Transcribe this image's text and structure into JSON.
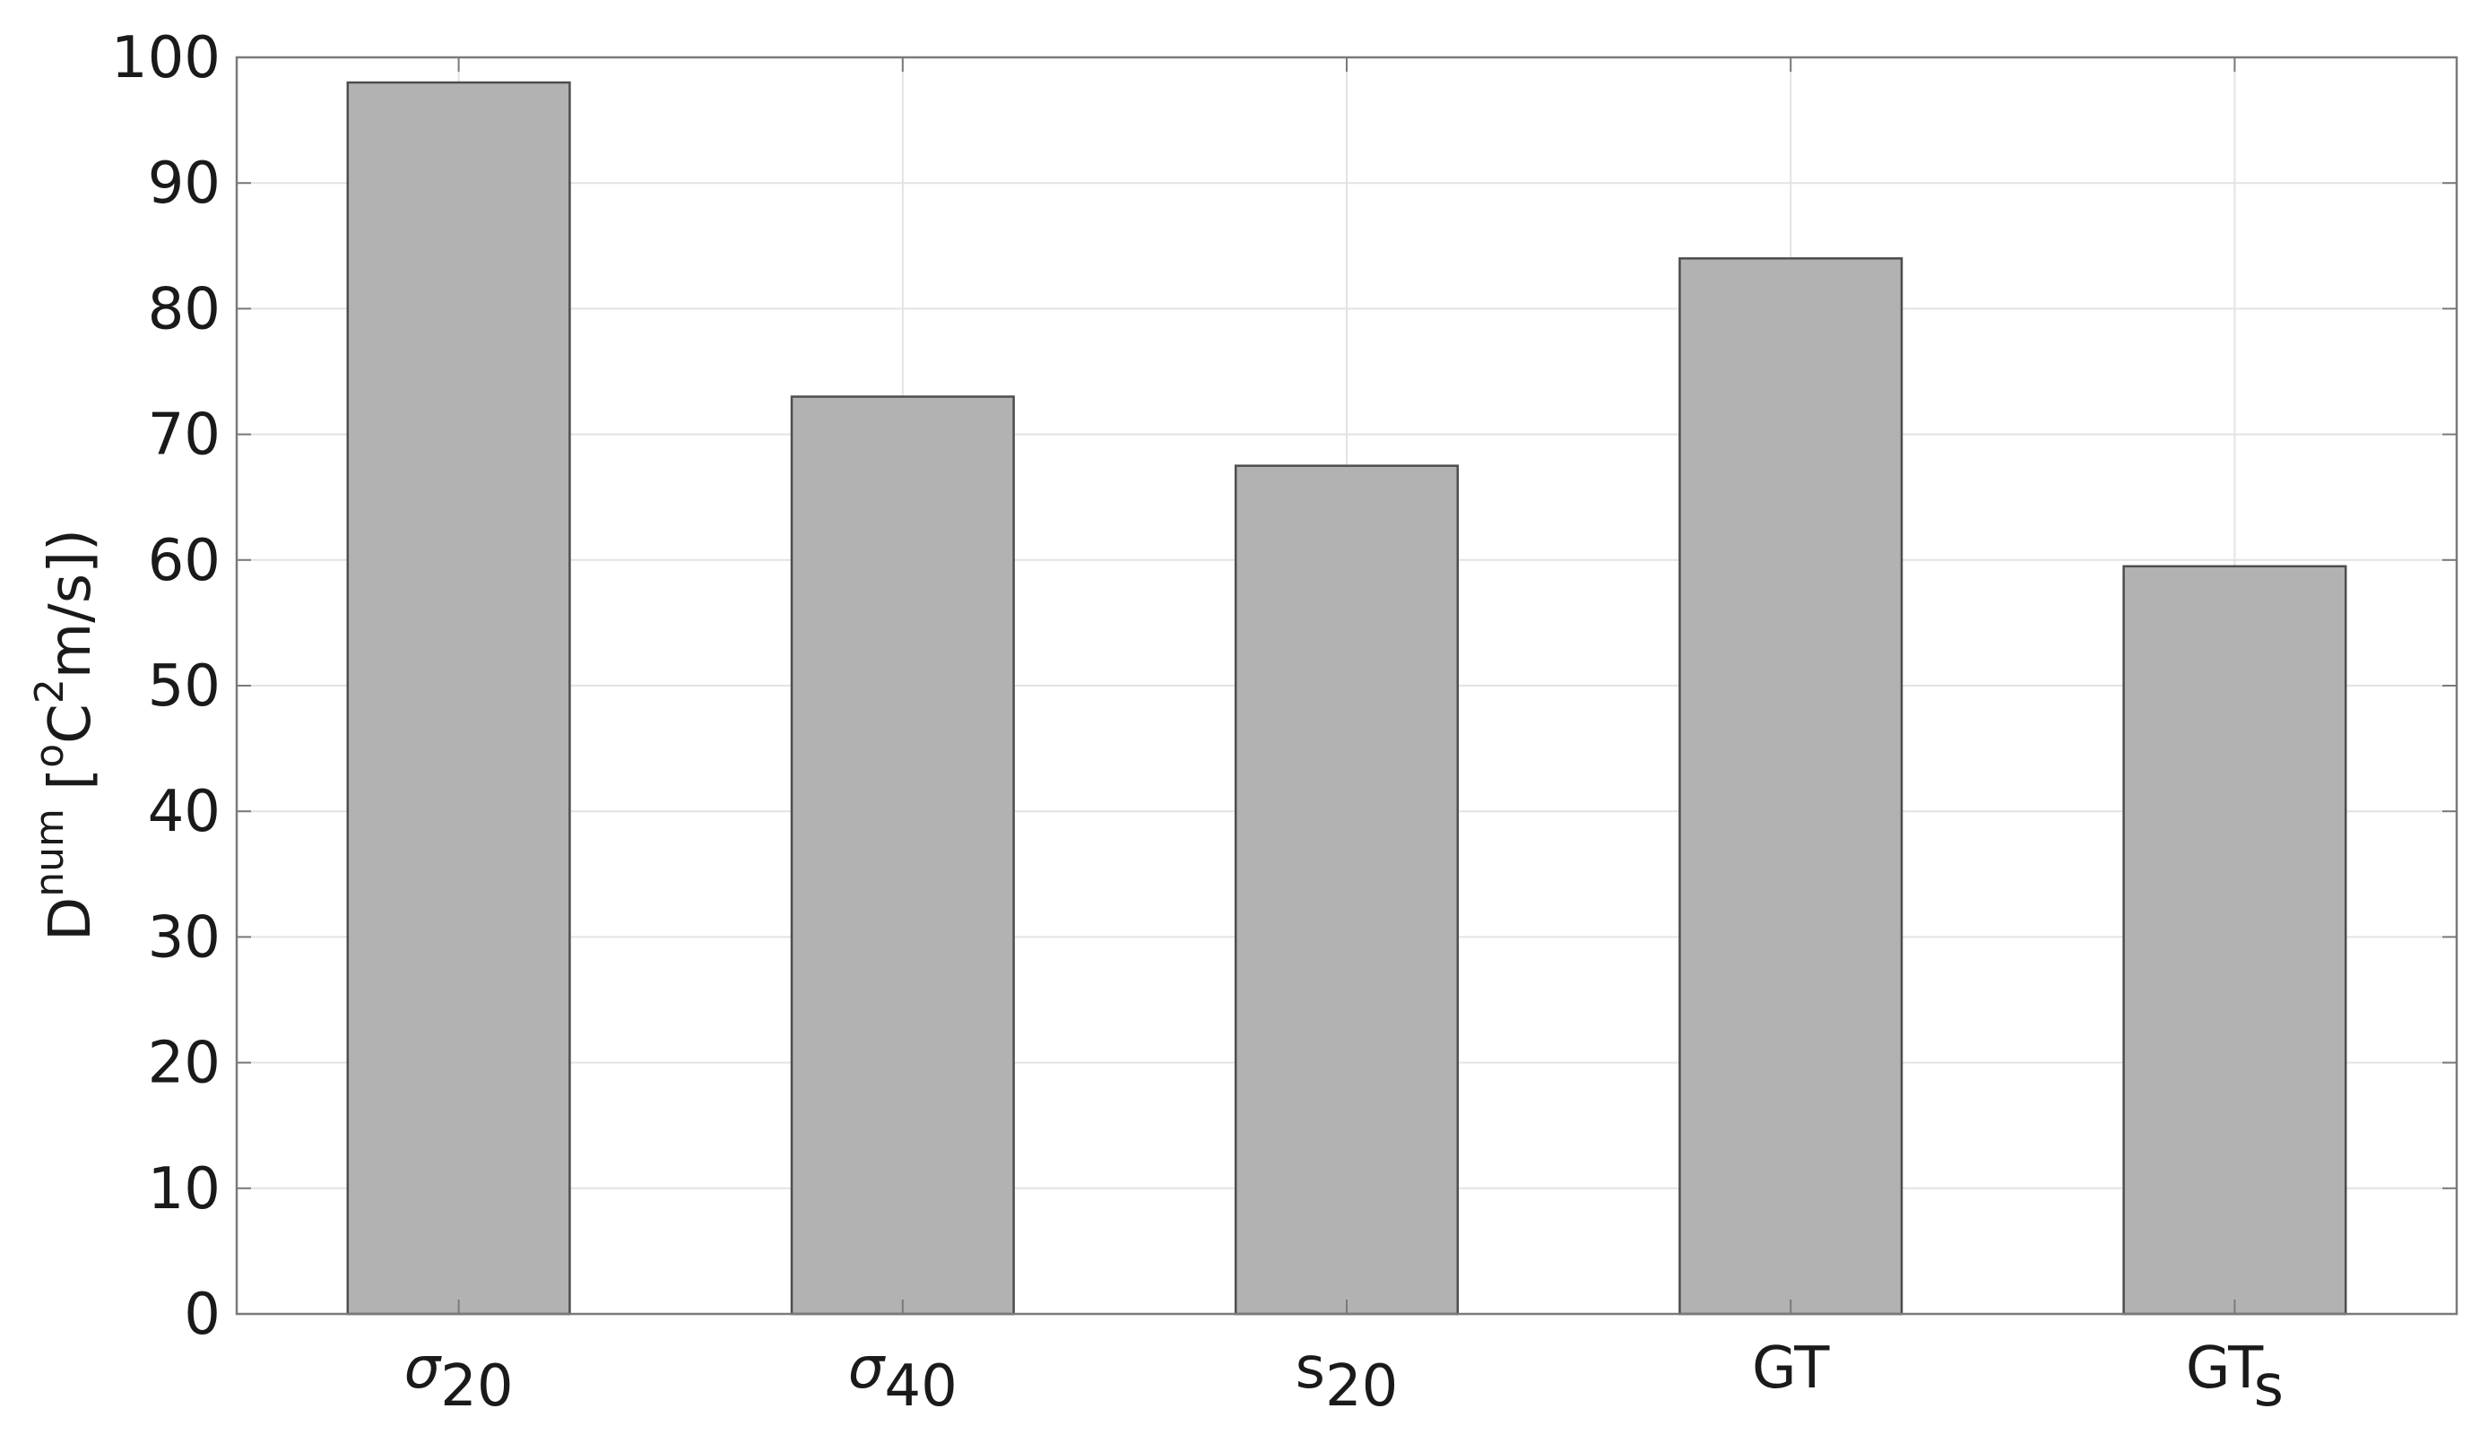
{
  "chart_data": {
    "type": "bar",
    "title": "",
    "xlabel": "",
    "ylabel": {
      "base": "D",
      "base_sup": "num",
      "open": " [",
      "degree": "o",
      "unit_c": "C",
      "exponent": "2",
      "rest": "m/s])"
    },
    "ylim": [
      0,
      100
    ],
    "yticks": [
      0,
      10,
      20,
      30,
      40,
      50,
      60,
      70,
      80,
      90,
      100
    ],
    "grid": true,
    "categories": [
      {
        "base": "σ",
        "sub": "20",
        "italic": true
      },
      {
        "base": "σ",
        "sub": "40",
        "italic": true
      },
      {
        "base": "s",
        "sub": "20",
        "italic": false
      },
      {
        "base": "GT",
        "sub": "",
        "italic": false
      },
      {
        "base": "GT",
        "sub": "s",
        "italic": false
      }
    ],
    "values": [
      98,
      73,
      67.5,
      84,
      59.5
    ],
    "colors": {
      "bar_fill": "#b2b2b2",
      "bar_stroke": "#4d4d4d",
      "axis": "#7a7a7a",
      "grid": "#e3e3e3",
      "text": "#1a1a1a"
    }
  }
}
